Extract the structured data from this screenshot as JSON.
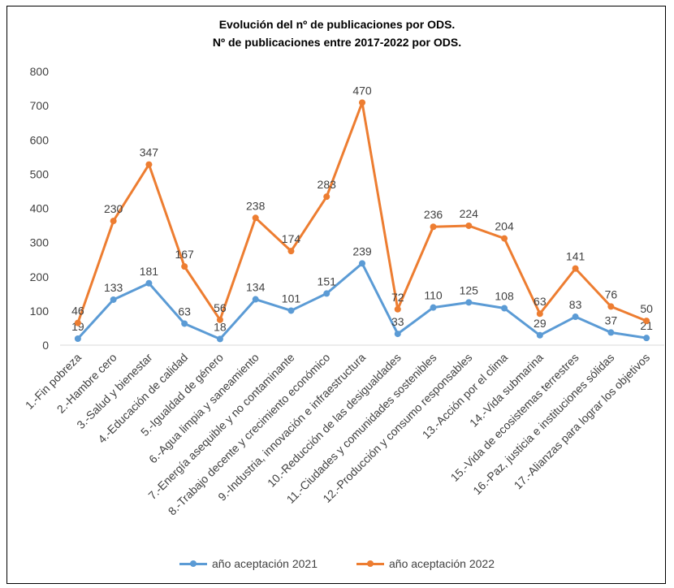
{
  "chart_data": {
    "type": "line",
    "title": "Evolución del nº de publicaciones por ODS.",
    "subtitle": "Nº de publicaciones entre 2017-2022 por ODS.",
    "xlabel": "",
    "ylabel": "",
    "ylim": [
      0,
      800
    ],
    "yticks": [
      "0",
      "100",
      "200",
      "300",
      "400",
      "500",
      "600",
      "700",
      "800"
    ],
    "grid": false,
    "legend_position": "bottom",
    "categories": [
      "1.-Fin pobreza",
      "2.-Hambre cero",
      "3.-Salud y bienestar",
      "4.-Educación de calidad",
      "5.-Igualdad de género",
      "6.-Agua limpia y saneamiento",
      "7.-Energía asequible y no contaminante",
      "8.-Trabajo decente y crecimiento económico",
      "9.-Industria, innovación e infraestructura",
      "10.-Reducción de las desigualdades",
      "11.-Ciudades y comunidades sostenibles",
      "12.-Producción y consumo responsables",
      "13.-Acción por el clima",
      "14.-Vida submarina",
      "15.-Vida de ecosistemas terrestres",
      "16.-Paz, justicia e instituciones sólidas",
      "17.-Alianzas para lograr los objetivos"
    ],
    "series": [
      {
        "name": "año aceptación 2021",
        "color": "#5B9BD5",
        "values": [
          19,
          133,
          181,
          63,
          18,
          134,
          101,
          151,
          239,
          33,
          110,
          125,
          108,
          29,
          83,
          37,
          21
        ],
        "plot_values": [
          19,
          133,
          181,
          63,
          18,
          134,
          101,
          151,
          239,
          33,
          110,
          125,
          108,
          29,
          83,
          37,
          21
        ]
      },
      {
        "name": "año aceptación 2022",
        "color": "#ED7D31",
        "values": [
          46,
          230,
          347,
          167,
          56,
          238,
          174,
          283,
          470,
          72,
          236,
          224,
          204,
          63,
          141,
          76,
          50
        ],
        "plot_values": [
          65,
          363,
          528,
          230,
          74,
          372,
          275,
          434,
          709,
          105,
          346,
          349,
          312,
          92,
          224,
          113,
          71
        ]
      }
    ]
  }
}
